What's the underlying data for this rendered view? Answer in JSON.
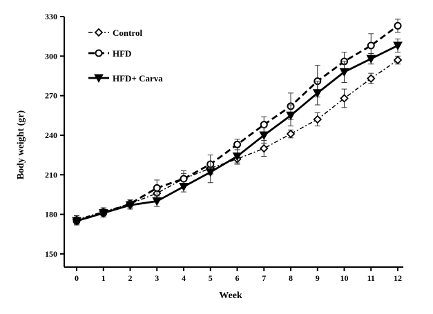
{
  "chart_data": {
    "type": "line",
    "title": "",
    "xlabel": "Week",
    "ylabel": "Body weight (gr)",
    "xlim": [
      0,
      12
    ],
    "ylim": [
      140,
      330
    ],
    "x": [
      0,
      1,
      2,
      3,
      4,
      5,
      6,
      7,
      8,
      9,
      10,
      11,
      12
    ],
    "x_ticks": [
      "0",
      "1",
      "2",
      "3",
      "4",
      "5",
      "6",
      "7",
      "8",
      "9",
      "10",
      "11",
      "12"
    ],
    "y_ticks": [
      "150",
      "180",
      "210",
      "240",
      "270",
      "300",
      "330"
    ],
    "y_tick_values": [
      150,
      180,
      210,
      240,
      270,
      300,
      330
    ],
    "grid": false,
    "legend_position": "top-left",
    "series": [
      {
        "name": "Control",
        "marker": "diamond",
        "line_style": "dash-dot",
        "values": [
          176,
          182,
          188,
          196,
          207,
          215,
          222,
          230,
          241,
          252,
          268,
          283,
          297
        ],
        "errors": [
          3,
          3,
          3,
          4,
          4,
          5,
          4,
          6,
          3,
          5,
          7,
          4,
          3
        ]
      },
      {
        "name": "HFD",
        "marker": "circle",
        "line_style": "dashed",
        "values": [
          175,
          181,
          188,
          200,
          207,
          218,
          233,
          248,
          262,
          281,
          296,
          308,
          323
        ],
        "errors": [
          3,
          3,
          3,
          6,
          6,
          7,
          4,
          6,
          10,
          12,
          7,
          9,
          5
        ]
      },
      {
        "name": "HFD+ Carva",
        "marker": "triangle-down",
        "line_style": "solid",
        "values": [
          175,
          181,
          187,
          190,
          201,
          212,
          224,
          240,
          255,
          272,
          288,
          298,
          308
        ],
        "errors": [
          3,
          3,
          3,
          4,
          4,
          8,
          5,
          6,
          8,
          9,
          8,
          4,
          5
        ]
      }
    ]
  }
}
